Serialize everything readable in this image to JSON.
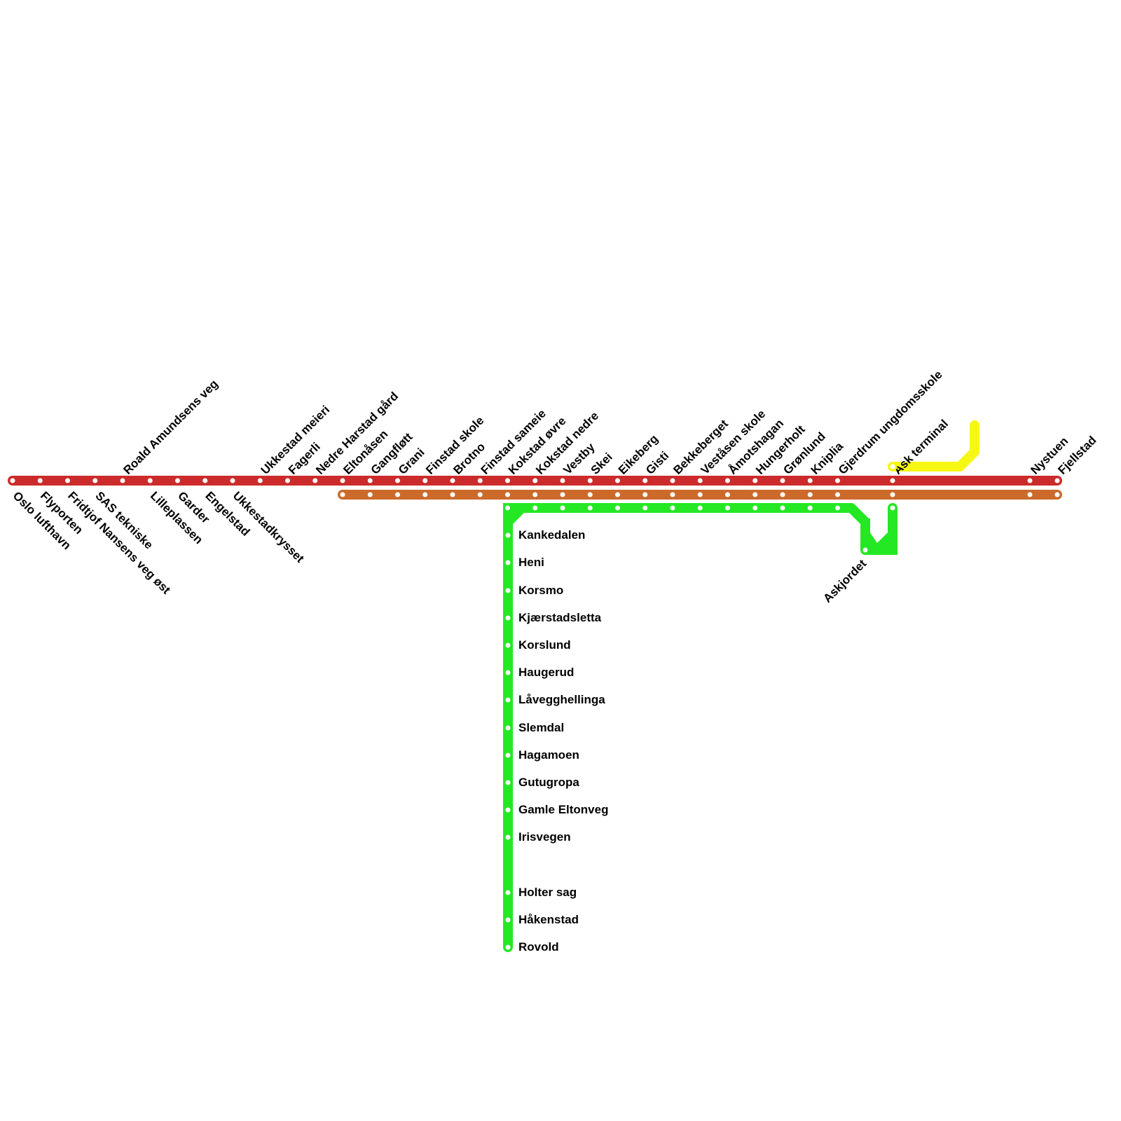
{
  "colors": {
    "red": "#cc2b2b",
    "orange": "#cc6a2b",
    "green": "#24e824",
    "yellow": "#f7f714",
    "station_fill": "#ffffff"
  },
  "red_line": {
    "stations": [
      "Oslo lufthavn",
      "Flyporten",
      "Fridtjof Nansens veg øst",
      "SAS tekniske",
      "Roald Amundsens veg",
      "Lilleplassen",
      "Garder",
      "Engelstad",
      "Ukkestadkrysset",
      "Ukkestad meieri",
      "Fagerli",
      "Nedre Harstad gård",
      "Eltonåsen",
      "Gangfløtt",
      "Grani",
      "Finstad skole",
      "Brotno",
      "Finstad sameie",
      "Kokstad øvre",
      "Kokstad nedre",
      "Vestby",
      "Skei",
      "Eikeberg",
      "Gisti",
      "Bekkeberget",
      "Veståsen skole",
      "Åmotshagan",
      "Hungerholt",
      "Grønlund",
      "Kniplia",
      "Gjerdrum ungdomsskole",
      "Ask terminal",
      "Nystuen",
      "Fjellstad"
    ]
  },
  "green_branch": {
    "stations": [
      "Kankedalen",
      "Heni",
      "Korsmo",
      "Kjærstadsletta",
      "Korslund",
      "Haugerud",
      "Låvegghellinga",
      "Slemdal",
      "Hagamoen",
      "Gutugropa",
      "Gamle Eltonveg",
      "Irisvegen",
      "Holter sag",
      "Håkenstad",
      "Rovold"
    ],
    "loop_station": "Askjordet"
  }
}
